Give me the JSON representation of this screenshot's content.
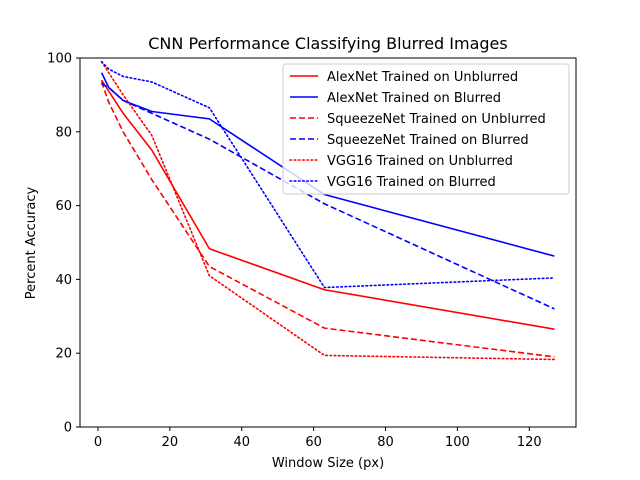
{
  "chart_data": {
    "type": "line",
    "title": "CNN Performance Classifying Blurred Images",
    "xlabel": "Window Size (px)",
    "ylabel": "Percent Accuracy",
    "xlim": [
      -5,
      133
    ],
    "ylim": [
      0,
      100
    ],
    "xticks": [
      0,
      20,
      40,
      60,
      80,
      100,
      120
    ],
    "yticks": [
      0,
      20,
      40,
      60,
      80,
      100
    ],
    "grid": false,
    "legend_position": "top-right",
    "x": [
      1,
      3,
      7,
      15,
      31,
      63,
      127
    ],
    "series": [
      {
        "name": "AlexNet Trained on Unblurred",
        "color": "#ff0000",
        "linestyle": "solid",
        "values": [
          94,
          91,
          85,
          75,
          48.3,
          37.2,
          26.5
        ]
      },
      {
        "name": "AlexNet Trained on Blurred",
        "color": "#0000ff",
        "linestyle": "solid",
        "values": [
          96,
          92,
          88.5,
          85.5,
          83.5,
          63,
          46.3
        ]
      },
      {
        "name": "SqueezeNet Trained on Unblurred",
        "color": "#ff0000",
        "linestyle": "dashed",
        "values": [
          93.5,
          88,
          80,
          67,
          43.5,
          26.8,
          19
        ]
      },
      {
        "name": "SqueezeNet Trained on Blurred",
        "color": "#0000ff",
        "linestyle": "dashed",
        "values": [
          93,
          92,
          88.5,
          85,
          78,
          60.5,
          32
        ]
      },
      {
        "name": "VGG16 Trained on Unblurred",
        "color": "#ff0000",
        "linestyle": "dotted",
        "values": [
          99,
          96,
          90,
          79,
          41,
          19.4,
          18.3
        ]
      },
      {
        "name": "VGG16 Trained on Blurred",
        "color": "#0000ff",
        "linestyle": "dotted",
        "values": [
          99,
          97,
          95,
          93.5,
          86.5,
          37.8,
          40.4
        ]
      }
    ]
  }
}
